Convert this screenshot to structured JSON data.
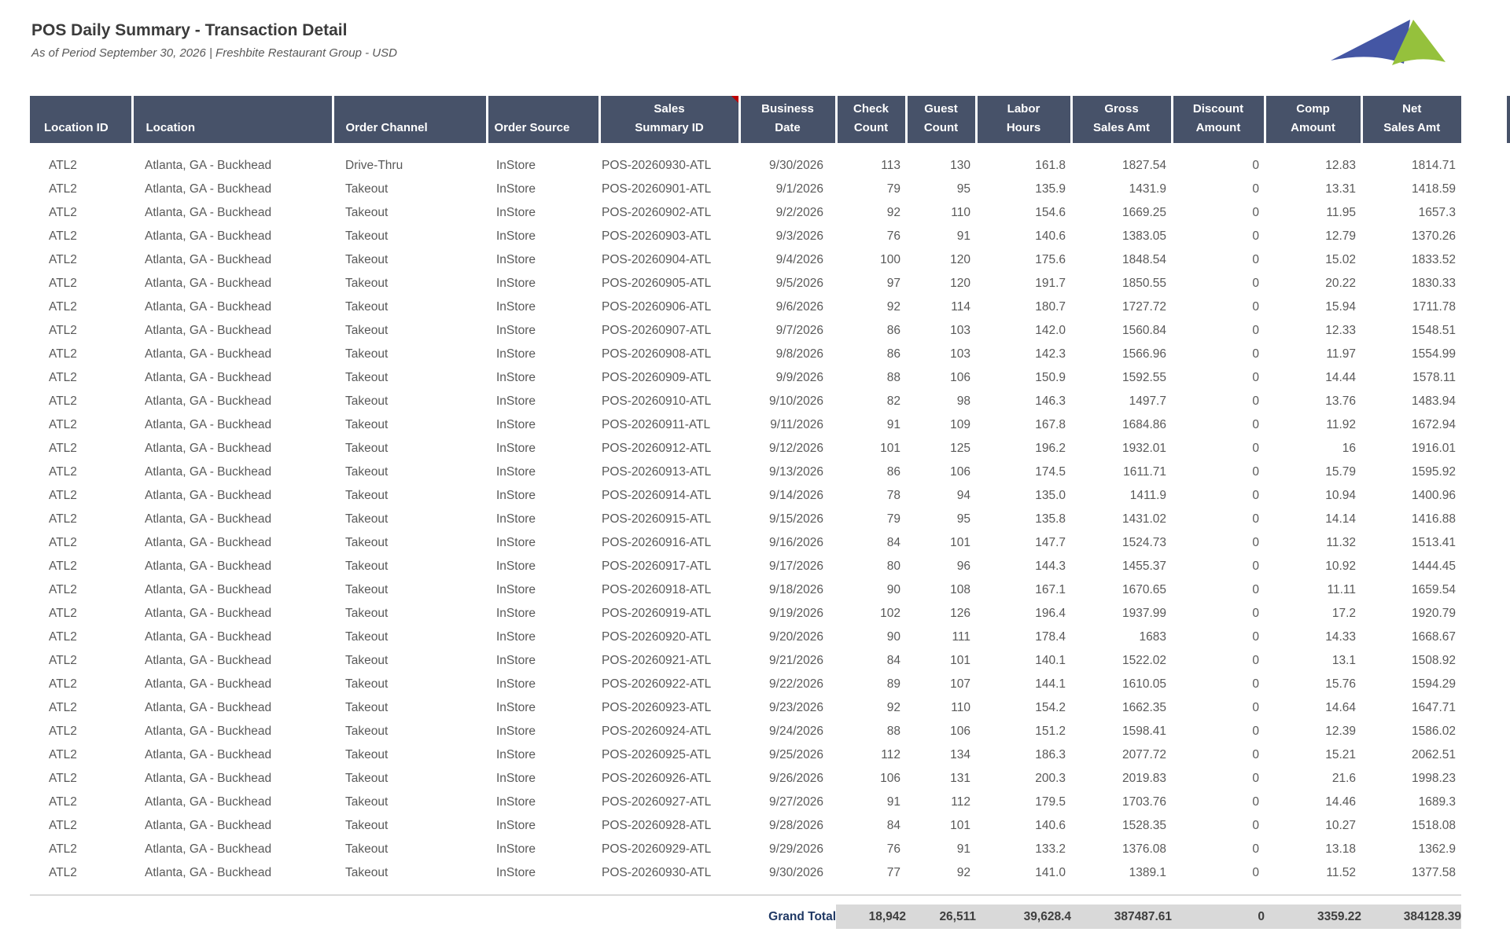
{
  "report": {
    "title": "POS Daily Summary - Transaction Detail",
    "subtitle": "As of Period September 30, 2026 | Freshbite Restaurant Group - USD"
  },
  "colors": {
    "header_bg": "#475269",
    "header_text": "#FFFFFF",
    "body_text": "#595959",
    "title_text": "#3B3B3B",
    "total_label": "#1F3864",
    "band_bg": "#D9D9D9",
    "divider": "#D9D9D9",
    "marker_red": "#C00000",
    "logo_blue": "#4456A4",
    "logo_green": "#95C13C"
  },
  "table": {
    "columns": [
      {
        "key": "location_id",
        "label": "Location ID"
      },
      {
        "key": "location",
        "label": "Location"
      },
      {
        "key": "order_channel",
        "label": "Order Channel"
      },
      {
        "key": "order_source",
        "label": "Order Source"
      },
      {
        "key": "sales_summary_id",
        "label": "Sales\nSummary ID",
        "marker": true
      },
      {
        "key": "business_date",
        "label": "Business\nDate"
      },
      {
        "key": "check_count",
        "label": "Check\nCount"
      },
      {
        "key": "guest_count",
        "label": "Guest\nCount"
      },
      {
        "key": "labor_hours",
        "label": "Labor\nHours"
      },
      {
        "key": "gross_sales_amt",
        "label": "Gross\nSales Amt"
      },
      {
        "key": "discount_amount",
        "label": "Discount\nAmount"
      },
      {
        "key": "comp_amount",
        "label": "Comp\nAmount"
      },
      {
        "key": "net_sales_amt",
        "label": "Net\nSales Amt"
      }
    ],
    "rows": [
      [
        "ATL2",
        "Atlanta, GA - Buckhead",
        "Drive-Thru",
        "InStore",
        "POS-20260930-ATL",
        "9/30/2026",
        "113",
        "130",
        "161.8",
        "1827.54",
        "0",
        "12.83",
        "1814.71"
      ],
      [
        "ATL2",
        "Atlanta, GA - Buckhead",
        "Takeout",
        "InStore",
        "POS-20260901-ATL",
        "9/1/2026",
        "79",
        "95",
        "135.9",
        "1431.9",
        "0",
        "13.31",
        "1418.59"
      ],
      [
        "ATL2",
        "Atlanta, GA - Buckhead",
        "Takeout",
        "InStore",
        "POS-20260902-ATL",
        "9/2/2026",
        "92",
        "110",
        "154.6",
        "1669.25",
        "0",
        "11.95",
        "1657.3"
      ],
      [
        "ATL2",
        "Atlanta, GA - Buckhead",
        "Takeout",
        "InStore",
        "POS-20260903-ATL",
        "9/3/2026",
        "76",
        "91",
        "140.6",
        "1383.05",
        "0",
        "12.79",
        "1370.26"
      ],
      [
        "ATL2",
        "Atlanta, GA - Buckhead",
        "Takeout",
        "InStore",
        "POS-20260904-ATL",
        "9/4/2026",
        "100",
        "120",
        "175.6",
        "1848.54",
        "0",
        "15.02",
        "1833.52"
      ],
      [
        "ATL2",
        "Atlanta, GA - Buckhead",
        "Takeout",
        "InStore",
        "POS-20260905-ATL",
        "9/5/2026",
        "97",
        "120",
        "191.7",
        "1850.55",
        "0",
        "20.22",
        "1830.33"
      ],
      [
        "ATL2",
        "Atlanta, GA - Buckhead",
        "Takeout",
        "InStore",
        "POS-20260906-ATL",
        "9/6/2026",
        "92",
        "114",
        "180.7",
        "1727.72",
        "0",
        "15.94",
        "1711.78"
      ],
      [
        "ATL2",
        "Atlanta, GA - Buckhead",
        "Takeout",
        "InStore",
        "POS-20260907-ATL",
        "9/7/2026",
        "86",
        "103",
        "142.0",
        "1560.84",
        "0",
        "12.33",
        "1548.51"
      ],
      [
        "ATL2",
        "Atlanta, GA - Buckhead",
        "Takeout",
        "InStore",
        "POS-20260908-ATL",
        "9/8/2026",
        "86",
        "103",
        "142.3",
        "1566.96",
        "0",
        "11.97",
        "1554.99"
      ],
      [
        "ATL2",
        "Atlanta, GA - Buckhead",
        "Takeout",
        "InStore",
        "POS-20260909-ATL",
        "9/9/2026",
        "88",
        "106",
        "150.9",
        "1592.55",
        "0",
        "14.44",
        "1578.11"
      ],
      [
        "ATL2",
        "Atlanta, GA - Buckhead",
        "Takeout",
        "InStore",
        "POS-20260910-ATL",
        "9/10/2026",
        "82",
        "98",
        "146.3",
        "1497.7",
        "0",
        "13.76",
        "1483.94"
      ],
      [
        "ATL2",
        "Atlanta, GA - Buckhead",
        "Takeout",
        "InStore",
        "POS-20260911-ATL",
        "9/11/2026",
        "91",
        "109",
        "167.8",
        "1684.86",
        "0",
        "11.92",
        "1672.94"
      ],
      [
        "ATL2",
        "Atlanta, GA - Buckhead",
        "Takeout",
        "InStore",
        "POS-20260912-ATL",
        "9/12/2026",
        "101",
        "125",
        "196.2",
        "1932.01",
        "0",
        "16",
        "1916.01"
      ],
      [
        "ATL2",
        "Atlanta, GA - Buckhead",
        "Takeout",
        "InStore",
        "POS-20260913-ATL",
        "9/13/2026",
        "86",
        "106",
        "174.5",
        "1611.71",
        "0",
        "15.79",
        "1595.92"
      ],
      [
        "ATL2",
        "Atlanta, GA - Buckhead",
        "Takeout",
        "InStore",
        "POS-20260914-ATL",
        "9/14/2026",
        "78",
        "94",
        "135.0",
        "1411.9",
        "0",
        "10.94",
        "1400.96"
      ],
      [
        "ATL2",
        "Atlanta, GA - Buckhead",
        "Takeout",
        "InStore",
        "POS-20260915-ATL",
        "9/15/2026",
        "79",
        "95",
        "135.8",
        "1431.02",
        "0",
        "14.14",
        "1416.88"
      ],
      [
        "ATL2",
        "Atlanta, GA - Buckhead",
        "Takeout",
        "InStore",
        "POS-20260916-ATL",
        "9/16/2026",
        "84",
        "101",
        "147.7",
        "1524.73",
        "0",
        "11.32",
        "1513.41"
      ],
      [
        "ATL2",
        "Atlanta, GA - Buckhead",
        "Takeout",
        "InStore",
        "POS-20260917-ATL",
        "9/17/2026",
        "80",
        "96",
        "144.3",
        "1455.37",
        "0",
        "10.92",
        "1444.45"
      ],
      [
        "ATL2",
        "Atlanta, GA - Buckhead",
        "Takeout",
        "InStore",
        "POS-20260918-ATL",
        "9/18/2026",
        "90",
        "108",
        "167.1",
        "1670.65",
        "0",
        "11.11",
        "1659.54"
      ],
      [
        "ATL2",
        "Atlanta, GA - Buckhead",
        "Takeout",
        "InStore",
        "POS-20260919-ATL",
        "9/19/2026",
        "102",
        "126",
        "196.4",
        "1937.99",
        "0",
        "17.2",
        "1920.79"
      ],
      [
        "ATL2",
        "Atlanta, GA - Buckhead",
        "Takeout",
        "InStore",
        "POS-20260920-ATL",
        "9/20/2026",
        "90",
        "111",
        "178.4",
        "1683",
        "0",
        "14.33",
        "1668.67"
      ],
      [
        "ATL2",
        "Atlanta, GA - Buckhead",
        "Takeout",
        "InStore",
        "POS-20260921-ATL",
        "9/21/2026",
        "84",
        "101",
        "140.1",
        "1522.02",
        "0",
        "13.1",
        "1508.92"
      ],
      [
        "ATL2",
        "Atlanta, GA - Buckhead",
        "Takeout",
        "InStore",
        "POS-20260922-ATL",
        "9/22/2026",
        "89",
        "107",
        "144.1",
        "1610.05",
        "0",
        "15.76",
        "1594.29"
      ],
      [
        "ATL2",
        "Atlanta, GA - Buckhead",
        "Takeout",
        "InStore",
        "POS-20260923-ATL",
        "9/23/2026",
        "92",
        "110",
        "154.2",
        "1662.35",
        "0",
        "14.64",
        "1647.71"
      ],
      [
        "ATL2",
        "Atlanta, GA - Buckhead",
        "Takeout",
        "InStore",
        "POS-20260924-ATL",
        "9/24/2026",
        "88",
        "106",
        "151.2",
        "1598.41",
        "0",
        "12.39",
        "1586.02"
      ],
      [
        "ATL2",
        "Atlanta, GA - Buckhead",
        "Takeout",
        "InStore",
        "POS-20260925-ATL",
        "9/25/2026",
        "112",
        "134",
        "186.3",
        "2077.72",
        "0",
        "15.21",
        "2062.51"
      ],
      [
        "ATL2",
        "Atlanta, GA - Buckhead",
        "Takeout",
        "InStore",
        "POS-20260926-ATL",
        "9/26/2026",
        "106",
        "131",
        "200.3",
        "2019.83",
        "0",
        "21.6",
        "1998.23"
      ],
      [
        "ATL2",
        "Atlanta, GA - Buckhead",
        "Takeout",
        "InStore",
        "POS-20260927-ATL",
        "9/27/2026",
        "91",
        "112",
        "179.5",
        "1703.76",
        "0",
        "14.46",
        "1689.3"
      ],
      [
        "ATL2",
        "Atlanta, GA - Buckhead",
        "Takeout",
        "InStore",
        "POS-20260928-ATL",
        "9/28/2026",
        "84",
        "101",
        "140.6",
        "1528.35",
        "0",
        "10.27",
        "1518.08"
      ],
      [
        "ATL2",
        "Atlanta, GA - Buckhead",
        "Takeout",
        "InStore",
        "POS-20260929-ATL",
        "9/29/2026",
        "76",
        "91",
        "133.2",
        "1376.08",
        "0",
        "13.18",
        "1362.9"
      ],
      [
        "ATL2",
        "Atlanta, GA - Buckhead",
        "Takeout",
        "InStore",
        "POS-20260930-ATL",
        "9/30/2026",
        "77",
        "92",
        "141.0",
        "1389.1",
        "0",
        "11.52",
        "1377.58"
      ]
    ],
    "grand_total": {
      "label": "Grand Total",
      "values": [
        "18,942",
        "26,511",
        "39,628.4",
        "387487.61",
        "0",
        "3359.22",
        "384128.39"
      ]
    }
  }
}
